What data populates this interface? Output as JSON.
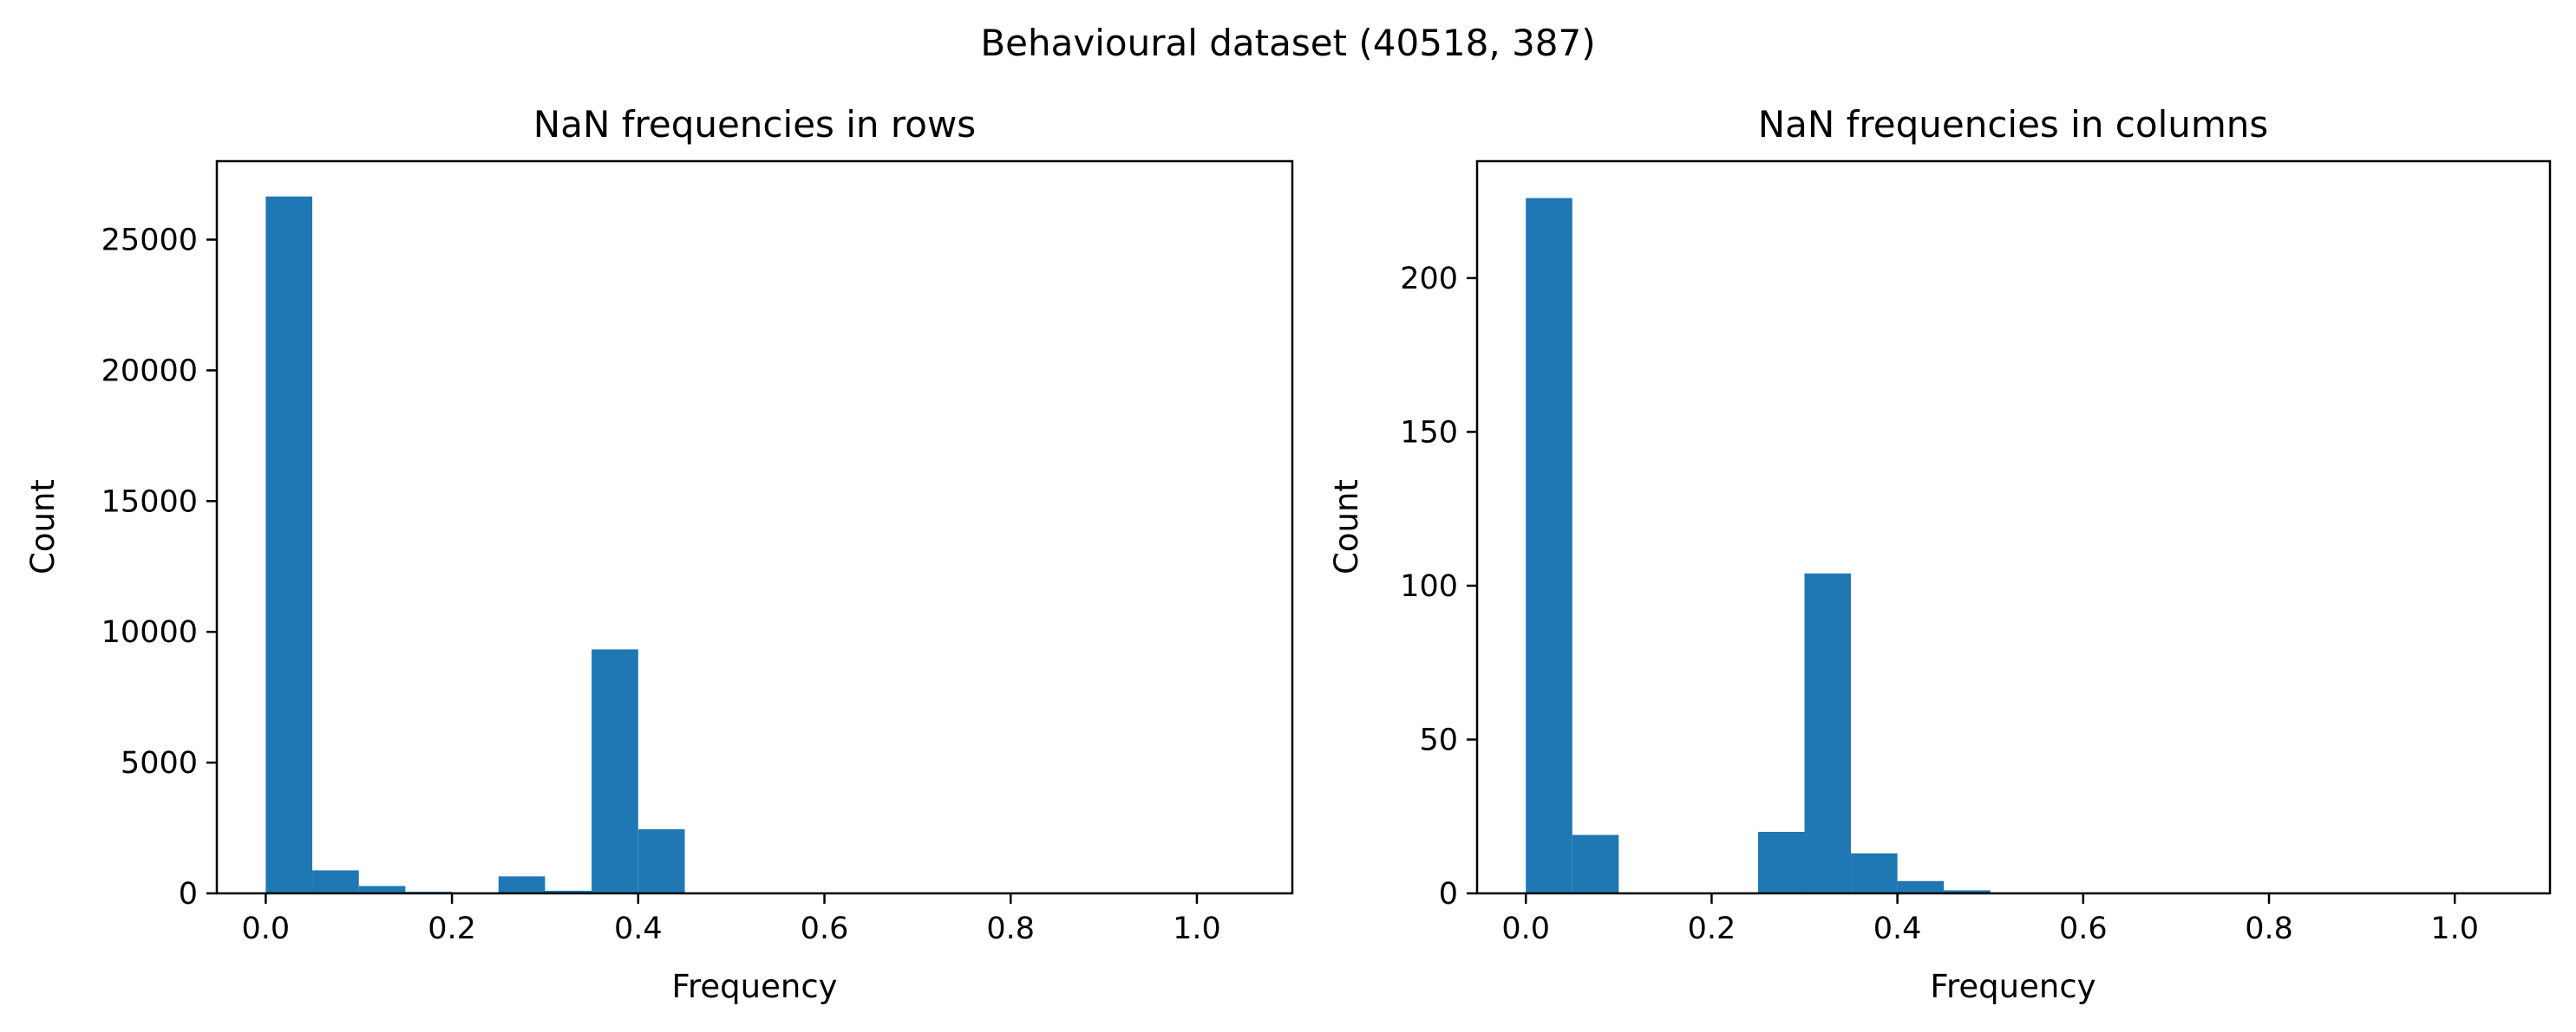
{
  "figure": {
    "suptitle": "Behavioural dataset (40518, 387)"
  },
  "style": {
    "bar_color": "#1f77b4",
    "axis_color": "#000000",
    "background": "#ffffff"
  },
  "chart_data": [
    {
      "type": "bar",
      "title": "NaN frequencies in rows",
      "xlabel": "Frequency",
      "ylabel": "Count",
      "xlim": [
        -0.0525,
        1.1025
      ],
      "ylim": [
        0,
        28000
      ],
      "xticks": [
        0.0,
        0.2,
        0.4,
        0.6,
        0.8,
        1.0
      ],
      "xtick_labels": [
        "0.0",
        "0.2",
        "0.4",
        "0.6",
        "0.8",
        "1.0"
      ],
      "yticks": [
        0,
        5000,
        10000,
        15000,
        20000,
        25000
      ],
      "ytick_labels": [
        "0",
        "5000",
        "10000",
        "15000",
        "20000",
        "25000"
      ],
      "grid": false,
      "bin_edges": [
        0.0,
        0.05,
        0.1,
        0.15,
        0.2,
        0.25,
        0.3,
        0.35,
        0.4,
        0.45,
        0.5,
        0.55,
        0.6,
        0.65,
        0.7,
        0.75,
        0.8,
        0.85,
        0.9,
        0.95,
        1.0,
        1.05
      ],
      "values": [
        26650,
        880,
        280,
        60,
        10,
        650,
        100,
        9330,
        2450,
        0,
        0,
        0,
        0,
        0,
        0,
        0,
        0,
        0,
        0,
        0,
        0
      ]
    },
    {
      "type": "bar",
      "title": "NaN frequencies in columns",
      "xlabel": "Frequency",
      "ylabel": "Count",
      "xlim": [
        -0.0525,
        1.1025
      ],
      "ylim": [
        0,
        238
      ],
      "xticks": [
        0.0,
        0.2,
        0.4,
        0.6,
        0.8,
        1.0
      ],
      "xtick_labels": [
        "0.0",
        "0.2",
        "0.4",
        "0.6",
        "0.8",
        "1.0"
      ],
      "yticks": [
        0,
        50,
        100,
        150,
        200
      ],
      "ytick_labels": [
        "0",
        "50",
        "100",
        "150",
        "200"
      ],
      "grid": false,
      "bin_edges": [
        0.0,
        0.05,
        0.1,
        0.15,
        0.2,
        0.25,
        0.3,
        0.35,
        0.4,
        0.45,
        0.5,
        0.55,
        0.6,
        0.65,
        0.7,
        0.75,
        0.8,
        0.85,
        0.9,
        0.95,
        1.0,
        1.05
      ],
      "values": [
        226,
        19,
        0,
        0,
        0,
        20,
        104,
        13,
        4,
        1,
        0,
        0,
        0,
        0,
        0,
        0,
        0,
        0,
        0,
        0,
        0
      ]
    }
  ]
}
